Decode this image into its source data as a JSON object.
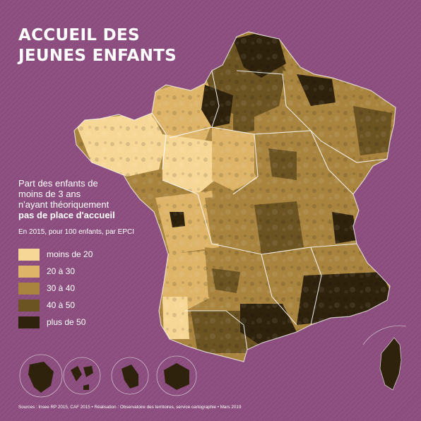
{
  "title": {
    "line1": "ACCUEIL DES",
    "line2": "JEUNES ENFANTS"
  },
  "legend": {
    "description": [
      "Part des enfants de",
      "moins de 3 ans",
      "n'ayant théoriquement"
    ],
    "description_bold": "pas de place d'accueil",
    "subtitle": "En 2015, pour 100 enfants, par EPCI",
    "classes": [
      {
        "label": "moins de 20",
        "color": "#f7d796"
      },
      {
        "label": "20 à 30",
        "color": "#ddb468"
      },
      {
        "label": "30 à 40",
        "color": "#a8843f"
      },
      {
        "label": "40 à 50",
        "color": "#6c5322"
      },
      {
        "label": "plus de 50",
        "color": "#2f220c"
      }
    ]
  },
  "source": "Sources : Insee RP 2015, CAF 2015 • Réalisation : Observatoire des territoires, service cartographie • Mars 2019",
  "colors": {
    "background": "#8b4d7e",
    "region_border": "#ffffff"
  }
}
